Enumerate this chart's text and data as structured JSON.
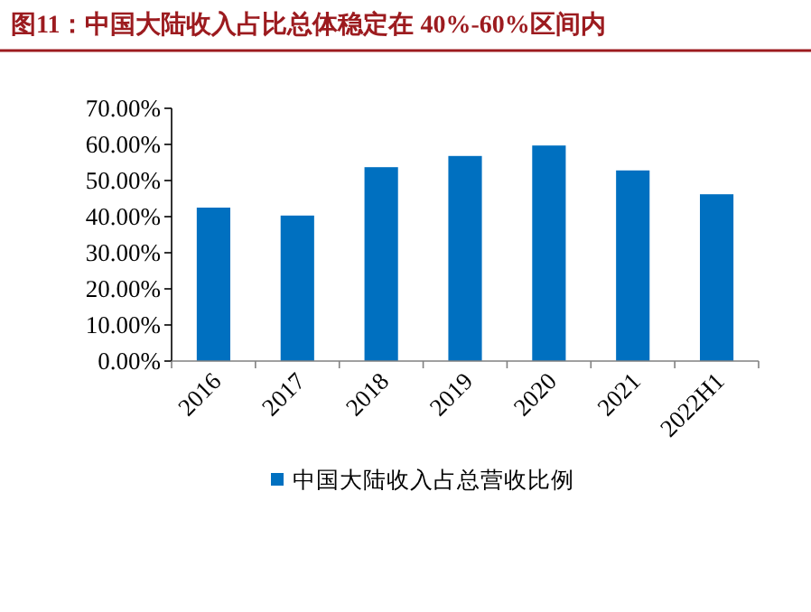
{
  "chart_data": {
    "type": "bar",
    "title": "图11：中国大陆收入占比总体稳定在 40%-60%区间内",
    "categories": [
      "2016",
      "2017",
      "2018",
      "2019",
      "2020",
      "2021",
      "2022H1"
    ],
    "series": [
      {
        "name": "中国大陆收入占总营收比例",
        "color": "#0070c0",
        "values": [
          42.5,
          40.3,
          53.7,
          56.8,
          59.7,
          52.8,
          46.2
        ]
      }
    ],
    "ylim": [
      0,
      70
    ],
    "yticks": [
      {
        "value": 0,
        "label": "0.00%"
      },
      {
        "value": 10,
        "label": "10.00%"
      },
      {
        "value": 20,
        "label": "20.00%"
      },
      {
        "value": 30,
        "label": "30.00%"
      },
      {
        "value": 40,
        "label": "40.00%"
      },
      {
        "value": 50,
        "label": "50.00%"
      },
      {
        "value": 60,
        "label": "60.00%"
      },
      {
        "value": 70,
        "label": "70.00%"
      }
    ],
    "legend": "bottom"
  }
}
